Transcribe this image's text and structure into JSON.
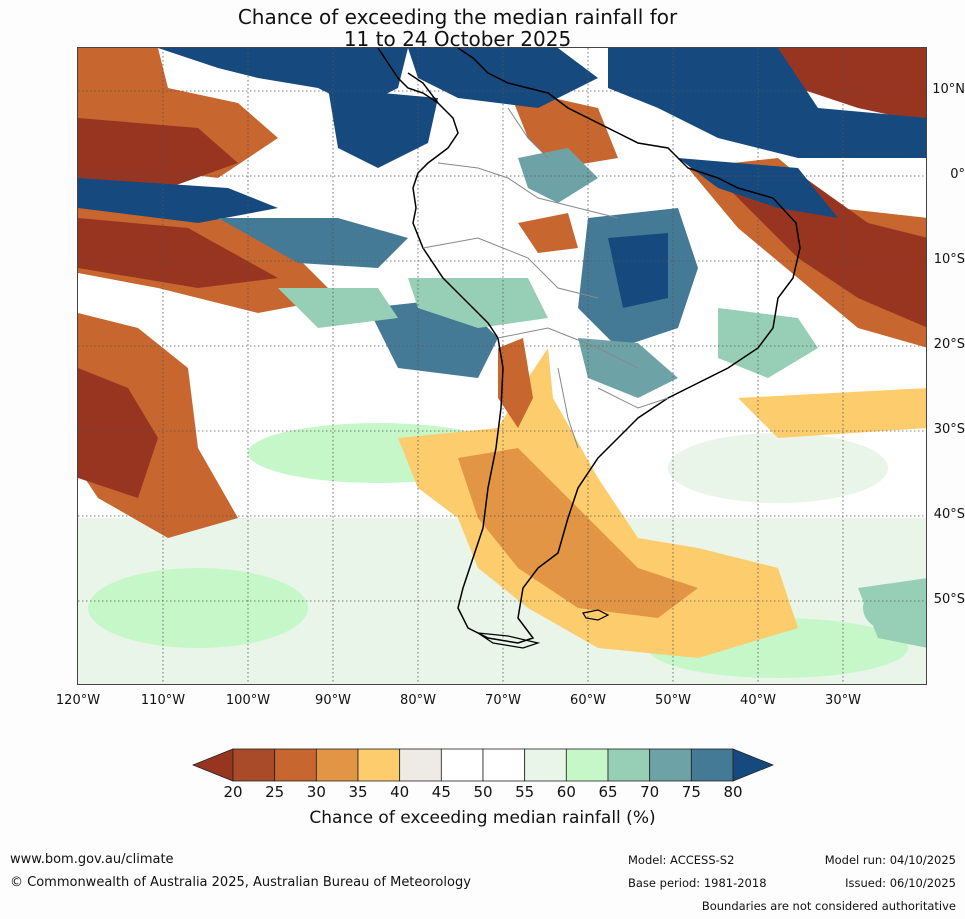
{
  "title": {
    "line1": "Chance of exceeding the median rainfall for",
    "line2": "11 to 24 October 2025"
  },
  "map": {
    "lat_labels": [
      "10°N",
      "0°",
      "10°S",
      "20°S",
      "30°S",
      "40°S",
      "50°S"
    ],
    "lon_labels": [
      "120°W",
      "110°W",
      "100°W",
      "90°W",
      "80°W",
      "70°W",
      "60°W",
      "50°W",
      "40°W",
      "30°W"
    ]
  },
  "legend": {
    "ticks": [
      "20",
      "25",
      "30",
      "35",
      "40",
      "45",
      "50",
      "55",
      "60",
      "65",
      "70",
      "75",
      "80"
    ],
    "colors": [
      "#983521",
      "#a94a28",
      "#c8662f",
      "#e39546",
      "#fdcc6d",
      "#eeebe6",
      "#ffffff",
      "#ffffff",
      "#e8f5e8",
      "#c6f7c9",
      "#97cfb6",
      "#6da3a6",
      "#457a97",
      "#164a7e"
    ],
    "title": "Chance of exceeding median rainfall (%)"
  },
  "footer": {
    "url": "www.bom.gov.au/climate",
    "copyright": "© Commonwealth of Australia 2025, Australian Bureau of Meteorology",
    "model": "Model: ACCESS-S2",
    "base_period": "Base period: 1981-2018",
    "model_run": "Model run: 04/10/2025",
    "issued": "Issued: 06/10/2025",
    "disclaimer": "Boundaries are not considered authoritative"
  },
  "colors": {
    "dry_dark": "#983521",
    "dry": "#c8662f",
    "dry_light": "#fdcc6d",
    "neutral": "#eeebe6",
    "wet_light": "#c6f7c9",
    "wet": "#6da3a6",
    "wet_dark": "#164a7e"
  }
}
